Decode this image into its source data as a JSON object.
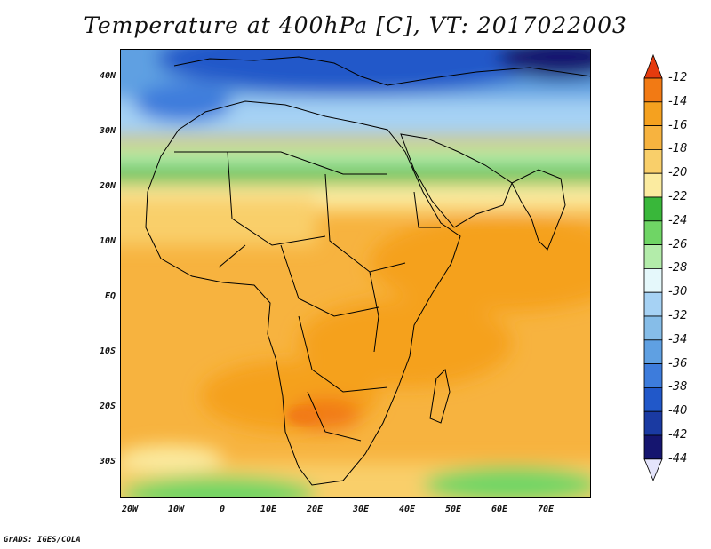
{
  "title": "Temperature at 400hPa [C], VT: 2017022003",
  "footer": "GrADS: IGES/COLA",
  "map": {
    "lat_labels": [
      "40N",
      "30N",
      "20N",
      "10N",
      "EQ",
      "10S",
      "20S",
      "30S"
    ],
    "lon_labels": [
      "20W",
      "10W",
      "0",
      "10E",
      "20E",
      "30E",
      "40E",
      "50E",
      "60E",
      "70E"
    ]
  },
  "colorbar": {
    "labels": [
      "-12",
      "-14",
      "-16",
      "-18",
      "-20",
      "-22",
      "-24",
      "-26",
      "-28",
      "-30",
      "-32",
      "-34",
      "-36",
      "-38",
      "-40",
      "-42",
      "-44"
    ],
    "colors": [
      "#e53b0e",
      "#f27a14",
      "#f5a11f",
      "#f7b33f",
      "#f9cf6a",
      "#fbeba0",
      "#39b73a",
      "#6fd565",
      "#b3ecaa",
      "#e5f8fb",
      "#a6d2f4",
      "#86bde8",
      "#5fa0e2",
      "#3d7cdc",
      "#2158c9",
      "#1a3aa2",
      "#15156f"
    ],
    "top_arrow_color": "#e53b0e",
    "bottom_arrow_color": "#e4e4fb"
  }
}
